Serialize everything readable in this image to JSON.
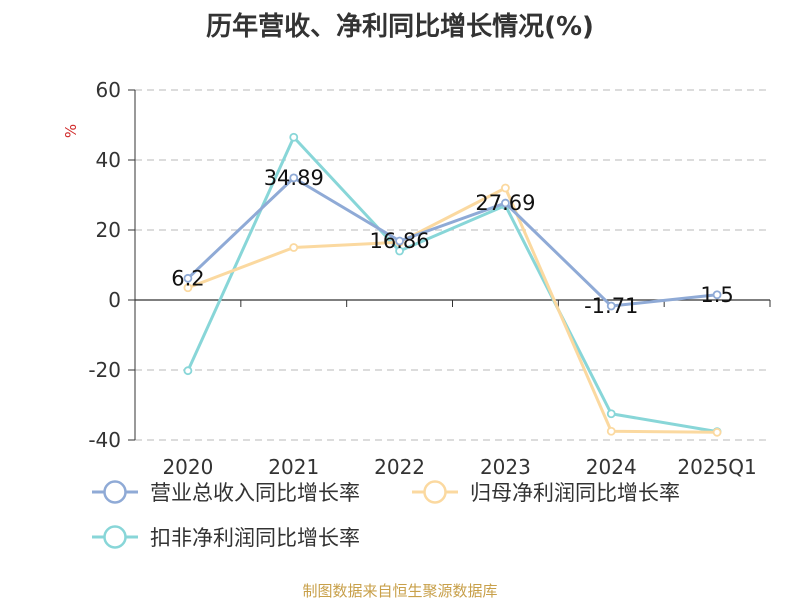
{
  "title": "历年营收、净利同比增长情况(%)",
  "source": "制图数据来自恒生聚源数据库",
  "chart_data": {
    "type": "line",
    "title": "历年营收、净利同比增长情况(%)",
    "ylabel": "%",
    "xlabel": "",
    "categories": [
      "2020",
      "2021",
      "2022",
      "2023",
      "2024",
      "2025Q1"
    ],
    "ylim": [
      -40,
      60
    ],
    "yticks": [
      60,
      40,
      20,
      0,
      -20,
      -40
    ],
    "grid": true,
    "legend_position": "bottom",
    "series": [
      {
        "name": "营业总收入同比增长率",
        "color": "#8faad6",
        "values": [
          6.2,
          34.89,
          16.86,
          27.69,
          -1.71,
          1.5
        ],
        "labels": [
          "6.2",
          "34.89",
          "16.86",
          "27.69",
          "-1.71",
          "1.5"
        ]
      },
      {
        "name": "归母净利润同比增长率",
        "color": "#fbd9a0",
        "values": [
          3.5,
          15,
          16.5,
          32,
          -37.5,
          -37.8
        ]
      },
      {
        "name": "扣非净利润同比增长率",
        "color": "#88d6d8",
        "values": [
          -20.2,
          46.5,
          14,
          27,
          -32.5,
          -37.6
        ]
      }
    ]
  }
}
